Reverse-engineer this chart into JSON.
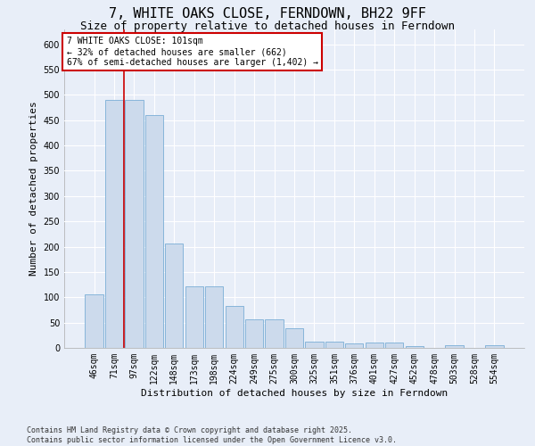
{
  "title": "7, WHITE OAKS CLOSE, FERNDOWN, BH22 9FF",
  "subtitle": "Size of property relative to detached houses in Ferndown",
  "xlabel": "Distribution of detached houses by size in Ferndown",
  "ylabel": "Number of detached properties",
  "footer_line1": "Contains HM Land Registry data © Crown copyright and database right 2025.",
  "footer_line2": "Contains public sector information licensed under the Open Government Licence v3.0.",
  "categories": [
    "46sqm",
    "71sqm",
    "97sqm",
    "122sqm",
    "148sqm",
    "173sqm",
    "198sqm",
    "224sqm",
    "249sqm",
    "275sqm",
    "300sqm",
    "325sqm",
    "351sqm",
    "376sqm",
    "401sqm",
    "427sqm",
    "452sqm",
    "478sqm",
    "503sqm",
    "528sqm",
    "554sqm"
  ],
  "values": [
    105,
    490,
    490,
    460,
    207,
    121,
    121,
    83,
    57,
    57,
    38,
    13,
    13,
    8,
    10,
    10,
    3,
    0,
    5,
    0,
    5
  ],
  "bar_color": "#ccdaec",
  "bar_edge_color": "#7aaed6",
  "reference_line_x": 1.5,
  "reference_line_color": "#cc0000",
  "annotation_text": "7 WHITE OAKS CLOSE: 101sqm\n← 32% of detached houses are smaller (662)\n67% of semi-detached houses are larger (1,402) →",
  "annotation_box_color": "#cc0000",
  "annotation_box_fill": "white",
  "ylim": [
    0,
    630
  ],
  "yticks": [
    0,
    50,
    100,
    150,
    200,
    250,
    300,
    350,
    400,
    450,
    500,
    550,
    600
  ],
  "bg_color": "#e8eef8",
  "grid_color": "white",
  "title_fontsize": 11,
  "subtitle_fontsize": 9,
  "axis_label_fontsize": 8,
  "tick_fontsize": 7,
  "footer_fontsize": 6,
  "annot_fontsize": 7
}
